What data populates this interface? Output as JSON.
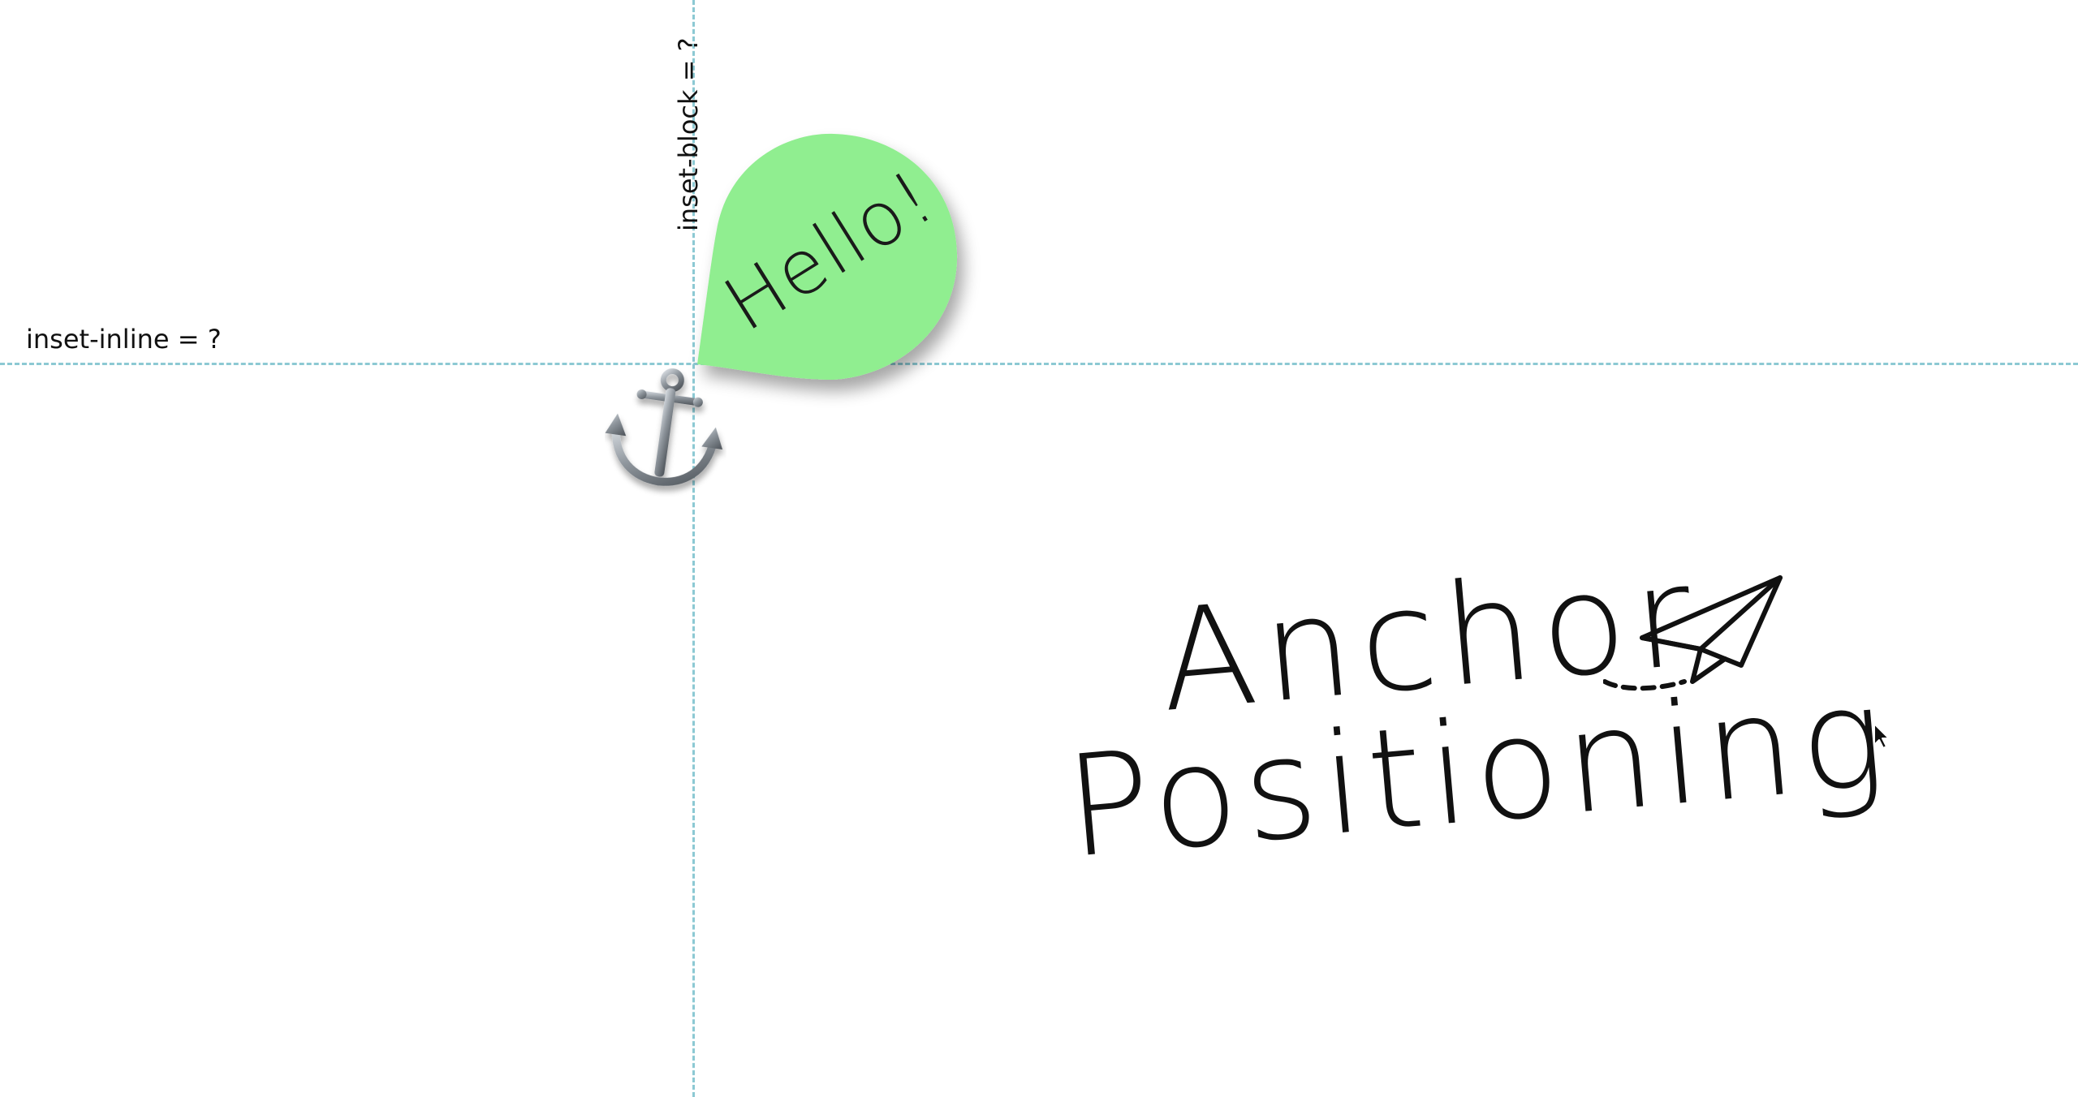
{
  "guides": {
    "inline_label": "inset-inline = ?",
    "block_label": "inset-block = ?"
  },
  "bubble": {
    "text": "Hello!",
    "color": "#90ee90"
  },
  "title": {
    "line1": "Anchor",
    "line2": "Positioning"
  },
  "icons": {
    "anchor": "anchor-icon",
    "plane": "paper-plane-icon",
    "cursor": "mouse-pointer-icon"
  },
  "colors": {
    "guide": "#8cc9d3",
    "text": "#111111",
    "background": "#ffffff"
  }
}
